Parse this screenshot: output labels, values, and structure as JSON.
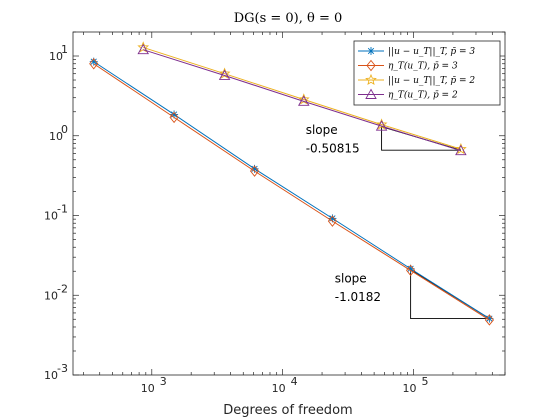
{
  "chart_data": {
    "type": "line",
    "title": "DG(s = 0), θ = 0",
    "xlabel": "Degrees of freedom",
    "ylabel": "",
    "xscale": "log",
    "yscale": "log",
    "xlim": [
      250,
      500000
    ],
    "ylim": [
      0.001,
      20
    ],
    "x_ticks": [
      {
        "value": 1000,
        "base": "10",
        "exp": "3"
      },
      {
        "value": 10000,
        "base": "10",
        "exp": "4"
      },
      {
        "value": 100000,
        "base": "10",
        "exp": "5"
      }
    ],
    "y_ticks": [
      {
        "value": 0.001,
        "label": "10"
      },
      {
        "value": 0.01,
        "label": "10"
      },
      {
        "value": 0.1,
        "label": "10"
      },
      {
        "value": 1,
        "label": "10"
      },
      {
        "value": 10,
        "label": "10"
      }
    ],
    "y_tick_exps": [
      "-3",
      "-2",
      "-1",
      "0",
      "1"
    ],
    "grid": false,
    "legend_position": "top-right",
    "series": [
      {
        "name": "||u − u_T||_T, p̄ = 3",
        "color": "#0072BD",
        "marker": "star",
        "x": [
          360,
          1480,
          6100,
          24000,
          95000,
          380000
        ],
        "y": [
          8.5,
          1.85,
          0.385,
          0.092,
          0.0215,
          0.0051
        ]
      },
      {
        "name": "η_T(u_T), p̄ = 3",
        "color": "#D95319",
        "marker": "diamond",
        "x": [
          360,
          1480,
          6100,
          24000,
          95000,
          380000
        ],
        "y": [
          8.0,
          1.7,
          0.36,
          0.085,
          0.0205,
          0.0049
        ]
      },
      {
        "name": "||u − u_T||_T, p̄ = 2",
        "color": "#EDB120",
        "marker": "pentagram",
        "x": [
          860,
          3600,
          14500,
          57000,
          230000
        ],
        "y": [
          12.8,
          6.0,
          2.85,
          1.38,
          0.68
        ]
      },
      {
        "name": "η_T(u_T), p̄ = 2",
        "color": "#7E2F8E",
        "marker": "triangle",
        "x": [
          860,
          3600,
          14500,
          57000,
          230000
        ],
        "y": [
          12.0,
          5.7,
          2.7,
          1.32,
          0.65
        ]
      }
    ],
    "slope_triangles": [
      {
        "x1": 57000,
        "x2": 230000,
        "y_top": 1.3,
        "y_bottom": 0.66
      },
      {
        "x1": 95000,
        "x2": 380000,
        "y_top": 0.021,
        "y_bottom": 0.0051
      }
    ],
    "annotations": [
      {
        "line1": "slope",
        "line2": "-0.50815",
        "x": 15000,
        "y1": 1.05,
        "y2": 0.62
      },
      {
        "line1": "slope",
        "line2": "-1.0182",
        "x": 25000,
        "y1": 0.0145,
        "y2": 0.0085
      }
    ]
  }
}
